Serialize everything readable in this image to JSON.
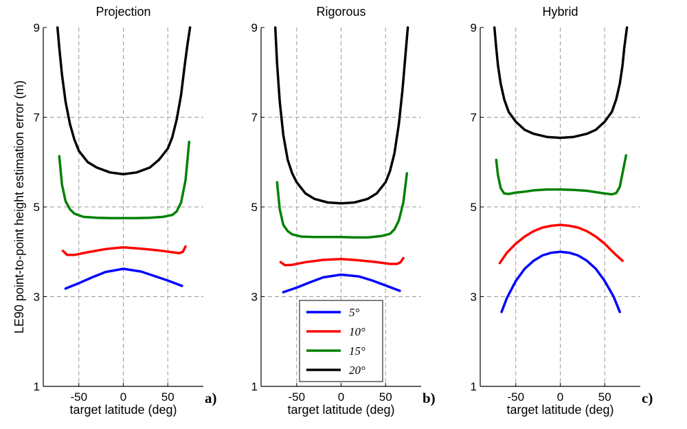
{
  "figure": {
    "ylabel": "LE90 point-to-point height estimation error (m)",
    "xlabel": "target latitude (deg)",
    "legend": [
      {
        "label": "5°",
        "color": "#0000ff"
      },
      {
        "label": "10°",
        "color": "#ff0000"
      },
      {
        "label": "15°",
        "color": "#008000"
      },
      {
        "label": "20°",
        "color": "#000000"
      }
    ]
  },
  "chart_data": [
    {
      "type": "line",
      "title": "Projection",
      "panel_label": "a)",
      "xlabel": "target latitude (deg)",
      "ylabel": "LE90 point-to-point height estimation error (m)",
      "xlim": [
        -90,
        90
      ],
      "ylim": [
        1,
        9
      ],
      "xticks": [
        -50,
        0,
        50
      ],
      "yticks": [
        1,
        3,
        5,
        7,
        9
      ],
      "grid": true,
      "series": [
        {
          "name": "5°",
          "color": "#0000ff",
          "x": [
            -65,
            -50,
            -35,
            -20,
            0,
            20,
            35,
            50,
            66
          ],
          "y": [
            3.18,
            3.3,
            3.43,
            3.55,
            3.62,
            3.56,
            3.46,
            3.36,
            3.24
          ]
        },
        {
          "name": "10°",
          "color": "#ff0000",
          "x": [
            -68,
            -63,
            -55,
            -40,
            -20,
            0,
            20,
            40,
            55,
            63,
            67,
            70
          ],
          "y": [
            4.02,
            3.93,
            3.93,
            3.99,
            4.06,
            4.1,
            4.07,
            4.03,
            3.99,
            3.97,
            4.0,
            4.12
          ]
        },
        {
          "name": "15°",
          "color": "#008000",
          "x": [
            -72,
            -69,
            -65,
            -60,
            -55,
            -45,
            -30,
            -15,
            0,
            15,
            30,
            45,
            55,
            60,
            65,
            70,
            74
          ],
          "y": [
            6.13,
            5.5,
            5.13,
            4.95,
            4.85,
            4.78,
            4.76,
            4.75,
            4.75,
            4.75,
            4.76,
            4.78,
            4.82,
            4.9,
            5.1,
            5.6,
            6.45
          ]
        },
        {
          "name": "20°",
          "color": "#000000",
          "x": [
            -74,
            -72,
            -69,
            -65,
            -60,
            -55,
            -50,
            -40,
            -30,
            -15,
            0,
            15,
            30,
            40,
            50,
            55,
            60,
            65,
            69,
            72,
            75
          ],
          "y": [
            9,
            8.55,
            7.95,
            7.35,
            6.85,
            6.5,
            6.25,
            6.0,
            5.88,
            5.77,
            5.73,
            5.77,
            5.88,
            6.05,
            6.3,
            6.55,
            6.95,
            7.5,
            8.15,
            8.6,
            9
          ]
        }
      ]
    },
    {
      "type": "line",
      "title": "Rigorous",
      "panel_label": "b)",
      "xlabel": "target latitude (deg)",
      "ylabel": "",
      "xlim": [
        -90,
        90
      ],
      "ylim": [
        1,
        9
      ],
      "xticks": [
        -50,
        0,
        50
      ],
      "yticks": [
        1,
        3,
        5,
        7,
        9
      ],
      "grid": true,
      "series": [
        {
          "name": "5°",
          "color": "#0000ff",
          "x": [
            -65,
            -50,
            -35,
            -20,
            0,
            20,
            35,
            50,
            66
          ],
          "y": [
            3.1,
            3.2,
            3.32,
            3.43,
            3.49,
            3.45,
            3.36,
            3.25,
            3.13
          ]
        },
        {
          "name": "10°",
          "color": "#ff0000",
          "x": [
            -68,
            -63,
            -55,
            -40,
            -20,
            0,
            20,
            40,
            55,
            63,
            67,
            70
          ],
          "y": [
            3.77,
            3.7,
            3.71,
            3.77,
            3.82,
            3.84,
            3.81,
            3.77,
            3.73,
            3.73,
            3.77,
            3.86
          ]
        },
        {
          "name": "15°",
          "color": "#008000",
          "x": [
            -72,
            -69,
            -65,
            -60,
            -55,
            -45,
            -30,
            -15,
            0,
            15,
            30,
            45,
            55,
            60,
            65,
            70,
            74
          ],
          "y": [
            5.55,
            4.95,
            4.6,
            4.46,
            4.39,
            4.34,
            4.33,
            4.33,
            4.33,
            4.32,
            4.32,
            4.35,
            4.4,
            4.5,
            4.7,
            5.1,
            5.75
          ]
        },
        {
          "name": "20°",
          "color": "#000000",
          "x": [
            -74,
            -72,
            -69,
            -65,
            -60,
            -55,
            -50,
            -40,
            -30,
            -15,
            0,
            15,
            30,
            40,
            50,
            55,
            60,
            65,
            69,
            72,
            75
          ],
          "y": [
            9,
            8.2,
            7.35,
            6.6,
            6.05,
            5.75,
            5.55,
            5.3,
            5.18,
            5.1,
            5.08,
            5.1,
            5.18,
            5.3,
            5.55,
            5.8,
            6.2,
            6.85,
            7.6,
            8.3,
            9
          ]
        }
      ]
    },
    {
      "type": "line",
      "title": "Hybrid",
      "panel_label": "c)",
      "xlabel": "target latitude (deg)",
      "ylabel": "",
      "xlim": [
        -90,
        90
      ],
      "ylim": [
        1,
        9
      ],
      "xticks": [
        -50,
        0,
        50
      ],
      "yticks": [
        1,
        3,
        5,
        7,
        9
      ],
      "grid": true,
      "series": [
        {
          "name": "5°",
          "color": "#0000ff",
          "x": [
            -66,
            -60,
            -50,
            -40,
            -30,
            -20,
            -10,
            0,
            10,
            20,
            30,
            40,
            50,
            60,
            67
          ],
          "y": [
            2.66,
            2.97,
            3.35,
            3.62,
            3.8,
            3.92,
            3.98,
            4.0,
            3.98,
            3.92,
            3.8,
            3.62,
            3.35,
            3.0,
            2.66
          ]
        },
        {
          "name": "10°",
          "color": "#ff0000",
          "x": [
            -68,
            -60,
            -50,
            -40,
            -30,
            -20,
            -10,
            0,
            10,
            20,
            30,
            40,
            50,
            60,
            70
          ],
          "y": [
            3.75,
            3.98,
            4.18,
            4.34,
            4.46,
            4.54,
            4.58,
            4.6,
            4.58,
            4.54,
            4.46,
            4.34,
            4.18,
            3.98,
            3.8
          ]
        },
        {
          "name": "15°",
          "color": "#008000",
          "x": [
            -72,
            -70,
            -67,
            -63,
            -58,
            -50,
            -40,
            -30,
            -15,
            0,
            15,
            30,
            40,
            50,
            58,
            63,
            67,
            70,
            74
          ],
          "y": [
            6.05,
            5.7,
            5.42,
            5.3,
            5.29,
            5.32,
            5.34,
            5.37,
            5.39,
            5.39,
            5.38,
            5.36,
            5.33,
            5.3,
            5.28,
            5.31,
            5.45,
            5.75,
            6.15
          ]
        },
        {
          "name": "20°",
          "color": "#000000",
          "x": [
            -74,
            -72,
            -70,
            -67,
            -63,
            -58,
            -50,
            -40,
            -30,
            -15,
            0,
            15,
            30,
            40,
            50,
            58,
            63,
            67,
            70,
            72,
            75
          ],
          "y": [
            9,
            8.55,
            8.15,
            7.75,
            7.4,
            7.12,
            6.9,
            6.72,
            6.63,
            6.56,
            6.54,
            6.56,
            6.63,
            6.72,
            6.9,
            7.12,
            7.4,
            7.75,
            8.15,
            8.55,
            9
          ]
        }
      ]
    }
  ]
}
